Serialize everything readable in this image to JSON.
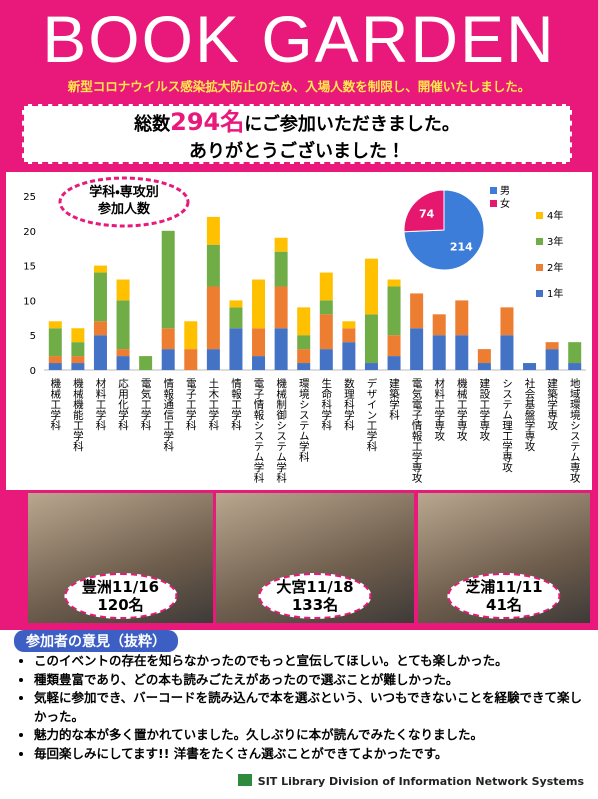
{
  "header": {
    "title": "BOOK GARDEN",
    "subtitle": "新型コロナウイルス感染拡大防止のため、入場人数を制限し、開催いたしました。"
  },
  "banner": {
    "line1_before": "総数",
    "line1_count": "294名",
    "line1_after": "にご参加いただきました。",
    "line2": "ありがとうございました！"
  },
  "chart_data": [
    {
      "type": "bar",
      "stacked": true,
      "title": [
        "学科・専攻別",
        "参加人数"
      ],
      "categories": [
        "機械工学科",
        "機械機能工学科",
        "材料工学科",
        "応用化学科",
        "電気工学科",
        "情報通信工学科",
        "電子工学科",
        "土木工学科",
        "情報工学科",
        "電子情報システム学科",
        "機械制御システム学科",
        "環境システム学科",
        "生命科学科",
        "数理科学科",
        "デザイン工学科",
        "建築学科",
        "電気電子情報工学専攻",
        "材料工学専攻",
        "機械工学専攻",
        "建設工学専攻",
        "システム理工学専攻",
        "社会基盤学専攻",
        "建築学専攻",
        "地域環境システム専攻"
      ],
      "series": [
        {
          "name": "1年",
          "color": "#4472c4",
          "values": [
            1,
            1,
            5,
            2,
            0,
            3,
            0,
            3,
            6,
            2,
            6,
            1,
            3,
            4,
            1,
            2,
            6,
            5,
            5,
            1,
            5,
            1,
            3,
            1
          ]
        },
        {
          "name": "2年",
          "color": "#ed7d31",
          "values": [
            1,
            1,
            2,
            1,
            0,
            3,
            3,
            9,
            0,
            4,
            6,
            2,
            5,
            2,
            0,
            3,
            5,
            3,
            5,
            2,
            4,
            0,
            1,
            0
          ]
        },
        {
          "name": "3年",
          "color": "#70ad47",
          "values": [
            4,
            2,
            7,
            7,
            2,
            14,
            0,
            6,
            3,
            0,
            5,
            2,
            2,
            0,
            7,
            7,
            0,
            0,
            0,
            0,
            0,
            0,
            0,
            3
          ]
        },
        {
          "name": "4年",
          "color": "#ffc000",
          "values": [
            1,
            2,
            1,
            3,
            0,
            0,
            4,
            4,
            1,
            7,
            2,
            4,
            4,
            1,
            8,
            1,
            0,
            0,
            0,
            0,
            0,
            0,
            0,
            0
          ]
        }
      ],
      "ylim": [
        0,
        25
      ],
      "yticks": [
        0,
        5,
        10,
        15,
        20,
        25
      ],
      "grid": false
    },
    {
      "type": "pie",
      "categories": [
        "男",
        "女"
      ],
      "values": [
        214,
        74
      ],
      "colors": [
        "#3b7dd8",
        "#e6176f"
      ]
    }
  ],
  "photos": [
    {
      "campus": "豊洲11/16",
      "count": "120名"
    },
    {
      "campus": "大宮11/18",
      "count": "133名"
    },
    {
      "campus": "芝浦11/11",
      "count": "41名"
    }
  ],
  "opinions": {
    "title": "参加者の意見（抜粋）",
    "items": [
      "このイベントの存在を知らなかったのでもっと宣伝してほしい。とても楽しかった。",
      "種類豊富であり、どの本も読みごたえがあったので選ぶことが難しかった。",
      "気軽に参加でき、バーコードを読み込んで本を選ぶという、いつもできないことを経験できて楽しかった。",
      "魅力的な本が多く置かれていました。久しぶりに本が読んでみたくなりました。",
      "毎回楽しみにしてます!! 洋書をたくさん選ぶことができてよかったです。"
    ]
  },
  "footer": "SIT Library Division of Information Network Systems"
}
